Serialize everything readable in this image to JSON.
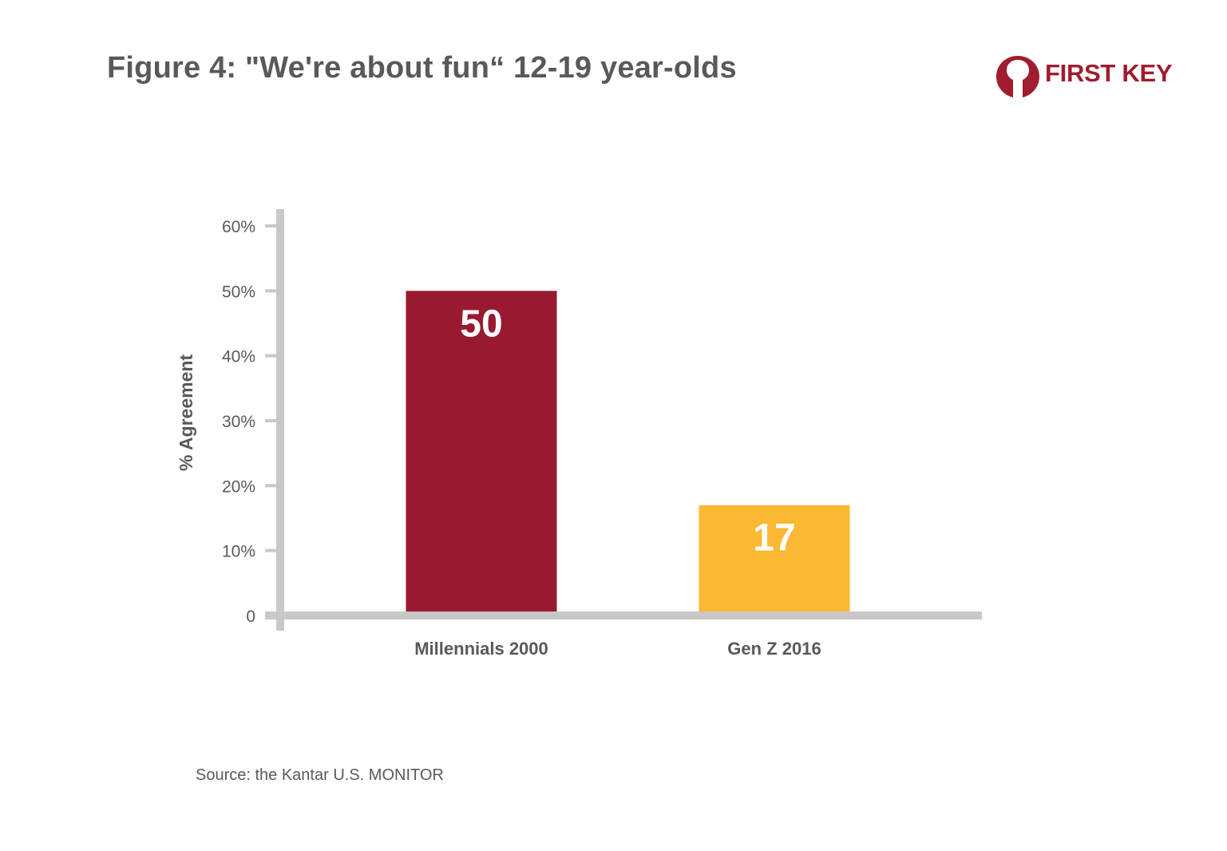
{
  "title": "Figure 4: \"We're about fun“ 12-19 year-olds",
  "logo": {
    "text": "FIRST KEY",
    "color": "#a01c2e"
  },
  "source": "Source: the Kantar U.S. MONITOR",
  "colors": {
    "axis": "#c8c8c8",
    "text": "#58595b",
    "bar1": "#991a30",
    "bar2": "#fbb832",
    "label": "#ffffff"
  },
  "chart_data": {
    "type": "bar",
    "ylabel": "% Agreement",
    "ylim": [
      0,
      60
    ],
    "yticks": [
      "0",
      "10%",
      "20%",
      "30%",
      "40%",
      "50%",
      "60%"
    ],
    "categories": [
      "Millennials 2000",
      "Gen Z 2016"
    ],
    "values": [
      50,
      17
    ],
    "data_labels": [
      "50",
      "17"
    ],
    "bar_colors": [
      "#991a30",
      "#fbb832"
    ],
    "grid": false
  }
}
